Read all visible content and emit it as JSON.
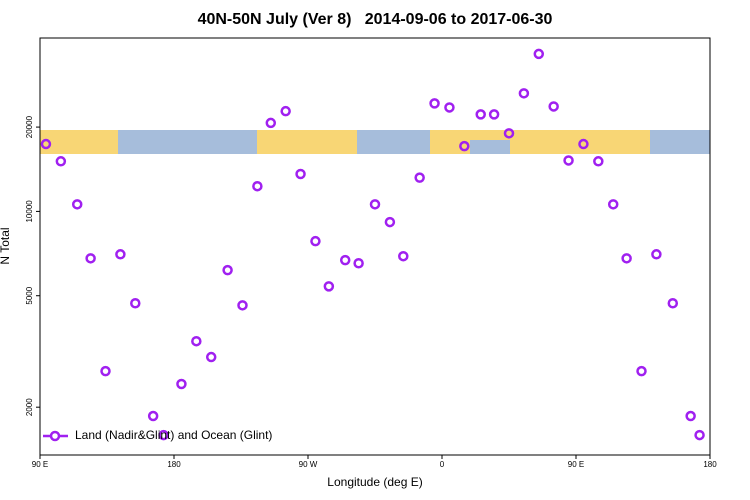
{
  "chart_data": {
    "type": "scatter",
    "title": "40N-50N July (Ver 8)   2014-09-06 to 2017-06-30",
    "xlabel": "Longitude (deg E)",
    "ylabel": "N Total",
    "xlim": [
      -270,
      180
    ],
    "xticks": [
      {
        "value": -270,
        "label": "90 E"
      },
      {
        "value": -180,
        "label": "180"
      },
      {
        "value": -90,
        "label": "90 W"
      },
      0,
      {
        "value": 90,
        "label": "90 E"
      },
      180
    ],
    "ylim": [
      1350,
      41600
    ],
    "yticks": [
      2000,
      5000,
      10000,
      20000
    ],
    "log_y": true,
    "legend": "bottom-left",
    "series": [
      {
        "name": "Land (Nadir&Glint) and Ocean (Glint)",
        "color": "#a020f0",
        "x": [
          -266,
          -256,
          -245,
          -236,
          -226,
          -216,
          -206,
          -194,
          -187,
          -175,
          -165,
          -155,
          -144,
          -134,
          -124,
          -115,
          -105,
          -95,
          -85,
          -76,
          -65,
          -56,
          -45,
          -35,
          -26,
          -15,
          -5,
          5,
          15,
          26,
          35,
          45,
          55,
          65,
          75,
          85,
          95,
          105,
          115,
          124,
          134,
          144,
          155,
          167,
          173
        ],
        "values": [
          17400,
          15100,
          10600,
          6800,
          2690,
          7030,
          4700,
          1860,
          1590,
          2420,
          3440,
          3020,
          6170,
          4620,
          12300,
          20700,
          22800,
          13600,
          7830,
          5400,
          6700,
          6530,
          10600,
          9160,
          6920,
          13200,
          24300,
          23500,
          17100,
          22200,
          22200,
          19000,
          26400,
          36500,
          23700,
          15200,
          17400,
          15100,
          10600,
          6800,
          2690,
          7030,
          4700,
          1860,
          1590
        ]
      }
    ]
  }
}
